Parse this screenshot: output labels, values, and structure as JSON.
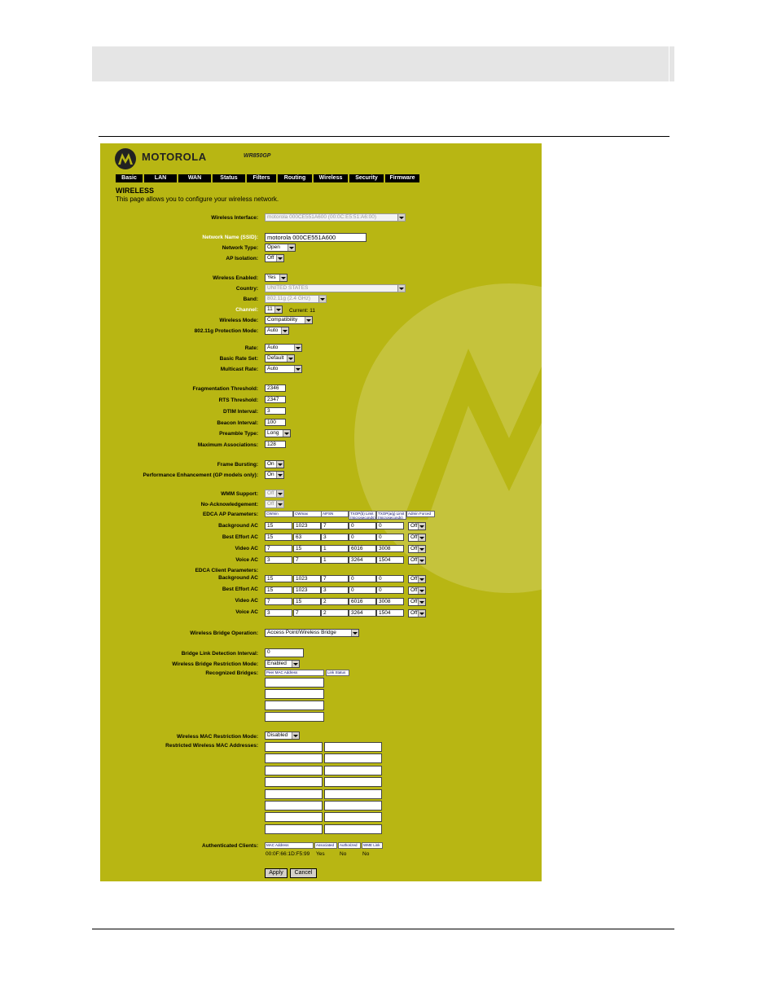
{
  "brand": "MOTOROLA",
  "model": "WR850GP",
  "nav": [
    "Basic",
    "LAN",
    "WAN",
    "Status",
    "Filters",
    "Routing",
    "Wireless",
    "Security",
    "Firmware"
  ],
  "page": {
    "title": "WIRELESS",
    "description": "This page allows you to configure your wireless network."
  },
  "labels": {
    "wireless_interface": "Wireless Interface:",
    "ssid": "Network Name (SSID):",
    "network_type": "Network Type:",
    "ap_isolation": "AP Isolation:",
    "wireless_enabled": "Wireless Enabled:",
    "country": "Country:",
    "band": "Band:",
    "channel": "Channel:",
    "wireless_mode": "Wireless Mode:",
    "protection_mode": "802.11g Protection Mode:",
    "rate": "Rate:",
    "basic_rate_set": "Basic Rate Set:",
    "multicast_rate": "Multicast Rate:",
    "frag_threshold": "Fragmentation Threshold:",
    "rts_threshold": "RTS Threshold:",
    "dtim_interval": "DTIM Interval:",
    "beacon_interval": "Beacon Interval:",
    "preamble_type": "Preamble Type:",
    "max_assoc": "Maximum Associations:",
    "frame_bursting": "Frame Bursting:",
    "perf_enh": "Performance Enhancement (GP models only):",
    "wmm_support": "WMM Support:",
    "no_ack": "No-Acknowledgement:",
    "edca_ap": "EDCA AP Parameters:",
    "edca_client": "EDCA Client Parameters:",
    "bridge_operation": "Wireless Bridge Operation:",
    "bridge_link": "Bridge Link Detection Interval:",
    "bridge_restriction": "Wireless Bridge Restriction Mode:",
    "recognized_bridges": "Recognized Bridges:",
    "mac_restriction": "Wireless MAC Restriction Mode:",
    "restricted_macs": "Restricted Wireless MAC Addresses:",
    "auth_clients": "Authenticated Clients:"
  },
  "values": {
    "wireless_interface": "motorola 000CE551A600 (00:0C:E5:51:A6:00)",
    "ssid": "motorola 000CE551A600",
    "network_type": "Open",
    "ap_isolation": "Off",
    "wireless_enabled": "Yes",
    "country": "UNITED STATES",
    "band": "802.11g (2.4 GHz)",
    "channel": "11",
    "channel_current": "Current: 11",
    "wireless_mode": "Compatibility",
    "protection_mode": "Auto",
    "rate": "Auto",
    "basic_rate_set": "Default",
    "multicast_rate": "Auto",
    "frag_threshold": "2346",
    "rts_threshold": "2347",
    "dtim_interval": "3",
    "beacon_interval": "100",
    "preamble_type": "Long",
    "max_assoc": "128",
    "frame_bursting": "On",
    "perf_enh": "On",
    "wmm_support": "Off",
    "no_ack": "Off",
    "bridge_operation": "Access Point/Wireless Bridge",
    "bridge_link": "0",
    "bridge_restriction": "Enabled",
    "mac_restriction": "Disabled"
  },
  "edca": {
    "columns": [
      "CWmin",
      "CWmax",
      "AIFSN",
      "TXOP(b) Limit (microseconds)",
      "TXOP(a/g) Limit (microseconds)",
      "Admin Forced"
    ],
    "ap_rows": [
      {
        "label": "Background AC",
        "vals": [
          "15",
          "1023",
          "7",
          "0",
          "0"
        ],
        "forced": "Off"
      },
      {
        "label": "Best Effort AC",
        "vals": [
          "15",
          "63",
          "3",
          "0",
          "0"
        ],
        "forced": "Off"
      },
      {
        "label": "Video AC",
        "vals": [
          "7",
          "15",
          "1",
          "6016",
          "3008"
        ],
        "forced": "Off"
      },
      {
        "label": "Voice AC",
        "vals": [
          "3",
          "7",
          "1",
          "3264",
          "1504"
        ],
        "forced": "Off"
      }
    ],
    "client_rows": [
      {
        "label": "Background AC",
        "vals": [
          "15",
          "1023",
          "7",
          "0",
          "0"
        ],
        "forced": "Off"
      },
      {
        "label": "Best Effort AC",
        "vals": [
          "15",
          "1023",
          "3",
          "0",
          "0"
        ],
        "forced": "Off"
      },
      {
        "label": "Video AC",
        "vals": [
          "7",
          "15",
          "2",
          "6016",
          "3008"
        ],
        "forced": "Off"
      },
      {
        "label": "Voice AC",
        "vals": [
          "3",
          "7",
          "2",
          "3264",
          "1504"
        ],
        "forced": "Off"
      }
    ]
  },
  "bridges": {
    "col_mac": "Peer MAC Address",
    "col_status": "Link Status"
  },
  "clients": {
    "columns": [
      "MAC Address",
      "Associated",
      "Authorized",
      "WME Link"
    ],
    "rows": [
      [
        "00:0F:66:1D:F5:99",
        "Yes",
        "No",
        "No"
      ]
    ]
  },
  "buttons": {
    "apply": "Apply",
    "cancel": "Cancel"
  },
  "colors": {
    "panel": "#b8b613",
    "watermark": "#c5c33c",
    "nav": "#000000",
    "highlight_label": "#ffffff"
  }
}
